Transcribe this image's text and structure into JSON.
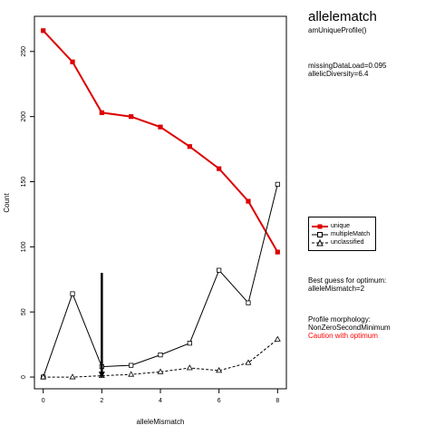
{
  "chart_data": {
    "type": "line",
    "xlabel": "alleleMismatch",
    "ylabel": "Count",
    "xlim": [
      -0.3,
      8.3
    ],
    "ylim": [
      -9,
      277
    ],
    "xticks": [
      0,
      2,
      4,
      6,
      8
    ],
    "yticks": [
      0,
      50,
      100,
      150,
      200,
      250
    ],
    "x": [
      0,
      1,
      2,
      3,
      4,
      5,
      6,
      7,
      8
    ],
    "series": [
      {
        "name": "unique",
        "color": "#dd0000",
        "style": "solid-thick",
        "marker": "filled-square",
        "values": [
          266,
          242,
          203,
          200,
          192,
          177,
          160,
          135,
          96
        ]
      },
      {
        "name": "multipleMatch",
        "color": "#000000",
        "style": "solid",
        "marker": "open-square",
        "values": [
          0,
          64,
          8,
          9,
          17,
          26,
          82,
          57,
          148
        ]
      },
      {
        "name": "unclassified",
        "color": "#000000",
        "style": "dashed",
        "marker": "open-triangle",
        "values": [
          0,
          0,
          1,
          2,
          4,
          7,
          5,
          11,
          29
        ]
      }
    ],
    "optimum_marker": {
      "x": 2,
      "y_top": 80,
      "y_bottom": 0
    },
    "grid": false,
    "legend_position": "right"
  },
  "side": {
    "title": "allelematch",
    "subtitle": "amUniqueProfile()",
    "params": [
      "missingDataLoad=0.095",
      "allelicDiversity=6.4"
    ],
    "optimum": [
      "Best guess for optimum:",
      "alleleMismatch=2"
    ],
    "morphology": [
      "Profile morphology:",
      "NonZeroSecondMinimum"
    ],
    "caution": "Caution with optimum",
    "caution_color": "#ff0000"
  }
}
